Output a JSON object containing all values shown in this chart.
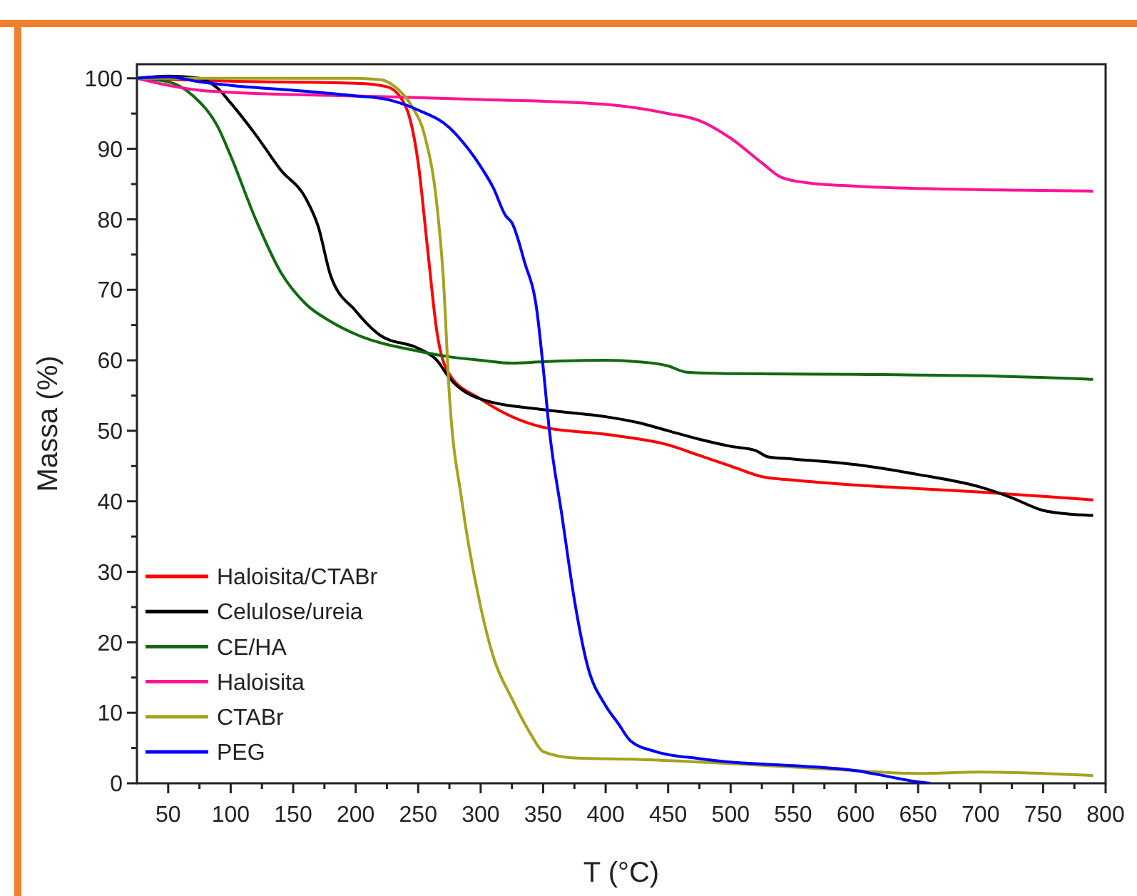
{
  "chart_data": {
    "type": "line",
    "xlabel": "T (°C)",
    "ylabel": "Massa (%)",
    "xlim": [
      25,
      800
    ],
    "ylim": [
      0,
      102
    ],
    "xticks": [
      50,
      {
        "value": 75,
        "label": null
      },
      100,
      {
        "value": 125,
        "label": null
      },
      150,
      {
        "value": 175,
        "label": null
      },
      200,
      {
        "value": 225,
        "label": null
      },
      250,
      {
        "value": 275,
        "label": null
      },
      300,
      {
        "value": 325,
        "label": null
      },
      350,
      {
        "value": 375,
        "label": null
      },
      400,
      {
        "value": 425,
        "label": null
      },
      450,
      {
        "value": 475,
        "label": null
      },
      500,
      {
        "value": 525,
        "label": null
      },
      550,
      {
        "value": 575,
        "label": null
      },
      600,
      {
        "value": 625,
        "label": null
      },
      650,
      {
        "value": 675,
        "label": null
      },
      700,
      {
        "value": 725,
        "label": null
      },
      750,
      {
        "value": 775,
        "label": null
      },
      800
    ],
    "yticks": [
      0,
      {
        "value": 5,
        "label": null
      },
      10,
      {
        "value": 15,
        "label": null
      },
      20,
      {
        "value": 25,
        "label": null
      },
      30,
      {
        "value": 35,
        "label": null
      },
      40,
      {
        "value": 45,
        "label": null
      },
      50,
      {
        "value": 55,
        "label": null
      },
      60,
      {
        "value": 65,
        "label": null
      },
      70,
      {
        "value": 75,
        "label": null
      },
      80,
      {
        "value": 85,
        "label": null
      },
      90,
      {
        "value": 95,
        "label": null
      },
      100
    ],
    "grid": false,
    "legend": "bottom left",
    "marker": "none",
    "line_style": "solid",
    "series": [
      {
        "name": "Haloisita/CTABr",
        "color": "#ff0000",
        "x": [
          25,
          100,
          200,
          225,
          240,
          250,
          258,
          265,
          275,
          300,
          350,
          400,
          450,
          475,
          500,
          525,
          550,
          600,
          650,
          700,
          750,
          790
        ],
        "values": [
          100,
          99.6,
          99.3,
          98.8,
          96,
          88,
          75,
          64,
          58,
          54.5,
          50.5,
          49.5,
          48,
          46.5,
          45,
          43.5,
          43,
          42.3,
          41.8,
          41.3,
          40.7,
          40.2
        ]
      },
      {
        "name": "Celulose/ureia",
        "color": "#000000",
        "x": [
          25,
          50,
          75,
          90,
          100,
          120,
          140,
          160,
          170,
          180,
          200,
          220,
          250,
          265,
          275,
          300,
          350,
          400,
          425,
          450,
          475,
          500,
          520,
          530,
          550,
          600,
          650,
          700,
          725,
          750,
          770,
          790
        ],
        "values": [
          100,
          100.3,
          100,
          98.5,
          96.5,
          92,
          87,
          83,
          79,
          72,
          67,
          63.5,
          61.7,
          60,
          57.5,
          54.5,
          53,
          52,
          51.2,
          50,
          48.8,
          47.8,
          47.2,
          46.3,
          46,
          45.2,
          43.8,
          42,
          40.5,
          38.7,
          38.2,
          38
        ]
      },
      {
        "name": "CE/HA",
        "color": "#106b10",
        "x": [
          25,
          50,
          70,
          90,
          100,
          120,
          140,
          160,
          180,
          200,
          250,
          275,
          300,
          325,
          350,
          400,
          425,
          450,
          465,
          500,
          600,
          700,
          790
        ],
        "values": [
          100,
          99.5,
          97.5,
          93,
          89,
          80,
          72.5,
          68,
          65.5,
          63.7,
          61.3,
          60.5,
          60,
          59.6,
          59.8,
          60,
          59.8,
          59.2,
          58.3,
          58.1,
          58,
          57.8,
          57.3
        ]
      },
      {
        "name": "Haloisita",
        "color": "#ff1493",
        "x": [
          25,
          50,
          75,
          100,
          200,
          300,
          400,
          450,
          475,
          500,
          525,
          540,
          560,
          600,
          700,
          790
        ],
        "values": [
          100,
          99,
          98.3,
          98,
          97.5,
          97,
          96.3,
          95,
          94,
          91.5,
          88,
          86,
          85.2,
          84.7,
          84.2,
          84
        ]
      },
      {
        "name": "CTABr",
        "color": "#a6a21e",
        "x": [
          25,
          100,
          200,
          220,
          230,
          245,
          255,
          265,
          270,
          275,
          285,
          300,
          310,
          325,
          340,
          350,
          375,
          425,
          500,
          550,
          600,
          650,
          700,
          750,
          790
        ],
        "values": [
          100,
          100,
          100,
          99.8,
          99,
          96,
          92,
          82,
          72,
          55,
          40,
          25,
          18,
          12,
          7,
          4.5,
          3.6,
          3.4,
          2.8,
          2.3,
          1.8,
          1.4,
          1.6,
          1.4,
          1.1
        ]
      },
      {
        "name": "PEG",
        "color": "#0000ff",
        "x": [
          25,
          50,
          75,
          100,
          150,
          200,
          225,
          250,
          275,
          290,
          300,
          310,
          320,
          325,
          335,
          345,
          350,
          355,
          365,
          375,
          385,
          400,
          410,
          420,
          440,
          475,
          500,
          550,
          600,
          625,
          650,
          660
        ],
        "values": [
          100,
          100.2,
          99.5,
          99,
          98.3,
          97.5,
          97,
          95.5,
          93,
          90,
          87.5,
          84.5,
          80.5,
          79.5,
          74,
          67,
          59,
          50,
          38,
          26,
          17,
          11,
          8.5,
          6,
          4.5,
          3.5,
          3,
          2.5,
          1.8,
          1,
          0.2,
          0
        ]
      }
    ]
  }
}
